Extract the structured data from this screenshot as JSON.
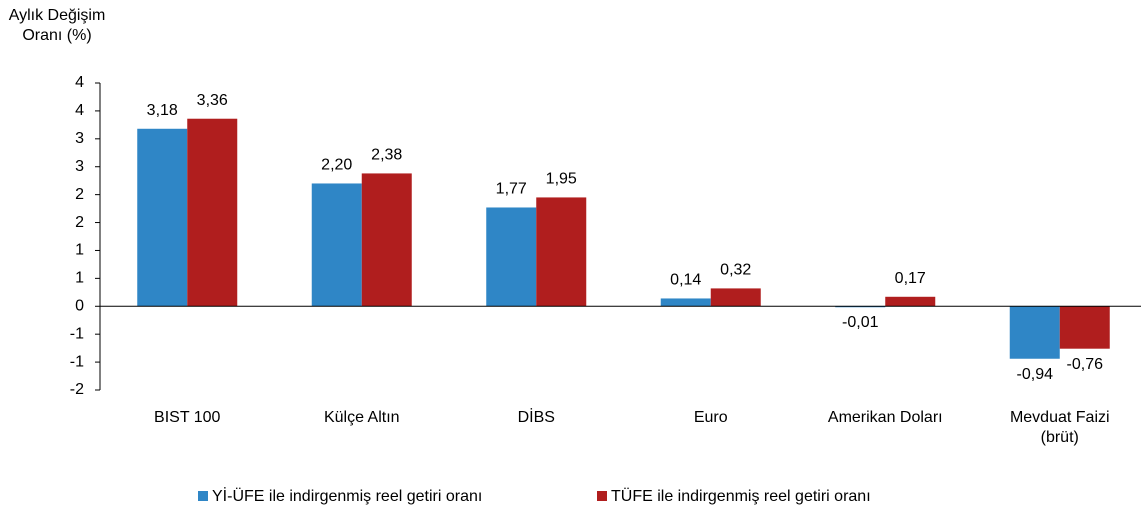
{
  "chart_data": {
    "type": "bar",
    "y_label": "Aylık Değişim Oranı (%)",
    "categories": [
      "BIST 100",
      "Külçe Altın",
      "DİBS",
      "Euro",
      "Amerikan Doları",
      "Mevduat Faizi (brüt)"
    ],
    "series": [
      {
        "name": "Yİ-ÜFE ile indirgenmiş reel getiri oranı",
        "color": "#2f86c6",
        "values": [
          3.18,
          2.2,
          1.77,
          0.14,
          -0.01,
          -0.94
        ],
        "value_labels": [
          "3,18",
          "2,20",
          "1,77",
          "0,14",
          "-0,01",
          "-0,94"
        ]
      },
      {
        "name": "TÜFE ile indirgenmiş reel getiri oranı",
        "color": "#b01e1e",
        "values": [
          3.36,
          2.38,
          1.95,
          0.32,
          0.17,
          -0.76
        ],
        "value_labels": [
          "3,36",
          "2,38",
          "1,95",
          "0,32",
          "0,17",
          "-0,76"
        ]
      }
    ],
    "ylim": [
      -1.5,
      4
    ],
    "yticks": [
      4,
      {
        "value": 3.5,
        "label": "4"
      },
      3,
      {
        "value": 2.5,
        "label": "3"
      },
      2,
      {
        "value": 1.5,
        "label": "2"
      },
      1,
      {
        "value": 0.5,
        "label": "1"
      },
      0,
      {
        "value": -0.5,
        "label": "-1"
      },
      -1,
      {
        "value": -1.5,
        "label": "-2"
      }
    ],
    "grid": false,
    "legend": "bottom"
  }
}
